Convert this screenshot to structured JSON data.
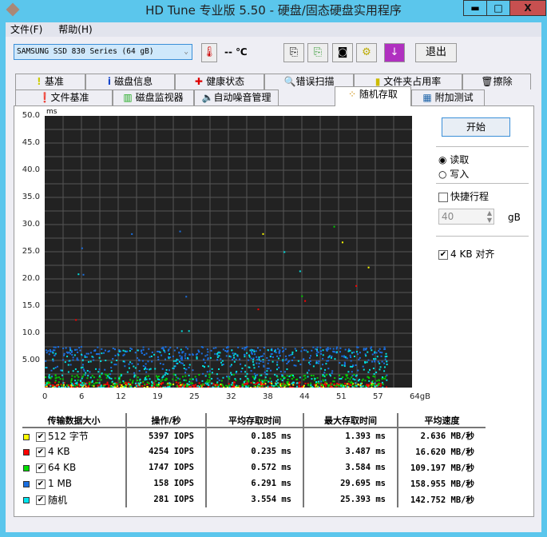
{
  "window": {
    "title": "HD Tune 专业版 5.50 - 硬盘/固态硬盘实用程序",
    "minimize": "▬",
    "maximize": "□",
    "close": "X"
  },
  "menu": [
    "文件(F)",
    "帮助(H)"
  ],
  "toolbar": {
    "drive": "SAMSUNG SSD 830 Series (64 gB)",
    "temperature": "-- ℃",
    "exit": "退出"
  },
  "tabs_row1": [
    "基准",
    "磁盘信息",
    "健康状态",
    "错误扫描",
    "文件夹占用率",
    "擦除"
  ],
  "tabs_row2": [
    "文件基准",
    "磁盘监视器",
    "自动噪音管理",
    "随机存取",
    "附加测试"
  ],
  "active_tab": "随机存取",
  "controls": {
    "start": "开始",
    "read": "读取",
    "write": "写入",
    "short_stroke": "快捷行程",
    "stroke_value": "40",
    "stroke_unit": "gB",
    "align": "4 KB 对齐",
    "read_selected": true,
    "write_selected": false,
    "short_stroke_checked": false,
    "align_checked": true
  },
  "chart_data": {
    "type": "scatter",
    "ylabel": "ms",
    "ylim": [
      0,
      50
    ],
    "yticks": [
      "50.0",
      "45.0",
      "40.0",
      "35.0",
      "30.0",
      "25.0",
      "20.0",
      "15.0",
      "10.0",
      "5.00"
    ],
    "xticks": [
      "0",
      "6",
      "12",
      "19",
      "25",
      "32",
      "38",
      "44",
      "51",
      "57",
      "64gB"
    ],
    "grid": true,
    "series_colors": {
      "512 字节": "#ffff00",
      "4 KB": "#ff0000",
      "64 KB": "#00cc00",
      "1 MB": "#1a6fe0",
      "随机": "#00e0e0"
    }
  },
  "results": {
    "headers": [
      "传输数据大小",
      "操作/秒",
      "平均存取时间",
      "最大存取时间",
      "平均速度"
    ],
    "rows": [
      {
        "label": "512 字节",
        "color": "#ffff00",
        "iops": "5397 IOPS",
        "avg": "0.185 ms",
        "max": "1.393 ms",
        "speed": "2.636 MB/秒"
      },
      {
        "label": "4 KB",
        "color": "#ff0000",
        "iops": "4254 IOPS",
        "avg": "0.235 ms",
        "max": "3.487 ms",
        "speed": "16.620 MB/秒"
      },
      {
        "label": "64 KB",
        "color": "#00dd00",
        "iops": "1747 IOPS",
        "avg": "0.572 ms",
        "max": "3.584 ms",
        "speed": "109.197 MB/秒"
      },
      {
        "label": "1 MB",
        "color": "#1a6fe0",
        "iops": "158 IOPS",
        "avg": "6.291 ms",
        "max": "29.695 ms",
        "speed": "158.955 MB/秒"
      },
      {
        "label": "随机",
        "color": "#00e5ee",
        "iops": "281 IOPS",
        "avg": "3.554 ms",
        "max": "25.393 ms",
        "speed": "142.752 MB/秒"
      }
    ]
  }
}
